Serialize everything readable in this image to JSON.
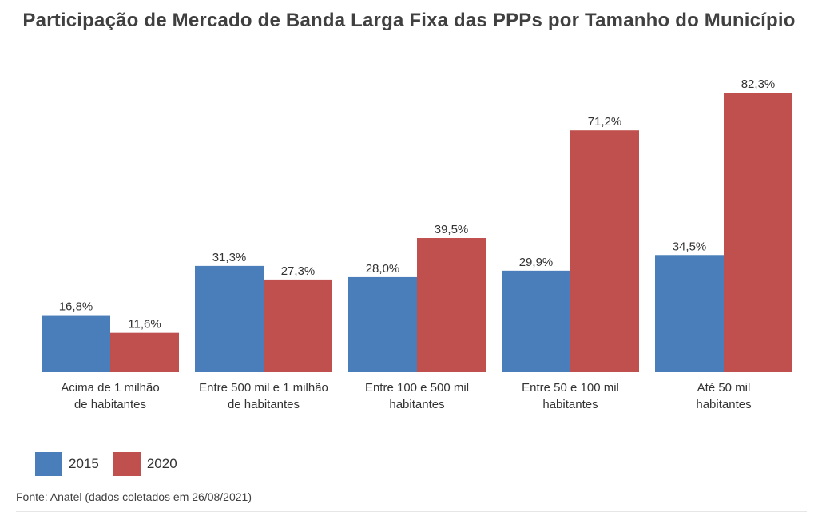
{
  "chart_data": {
    "type": "bar",
    "title": "Participação de Mercado de Banda Larga Fixa das PPPs por Tamanho do Município",
    "categories": [
      [
        "Acima de 1 milhão",
        "de habitantes"
      ],
      [
        "Entre 500 mil e 1 milhão",
        "de habitantes"
      ],
      [
        "Entre 100 e 500 mil",
        "habitantes"
      ],
      [
        "Entre 50 e 100 mil",
        "habitantes"
      ],
      [
        "Até 50 mil",
        "habitantes"
      ]
    ],
    "series": [
      {
        "name": "2015",
        "color": "#4a7ebb",
        "values": [
          16.8,
          31.3,
          28.0,
          29.9,
          34.5
        ],
        "labels": [
          "16,8%",
          "31,3%",
          "28,0%",
          "29,9%",
          "34,5%"
        ]
      },
      {
        "name": "2020",
        "color": "#c0504d",
        "values": [
          11.6,
          27.3,
          39.5,
          71.2,
          82.3
        ],
        "labels": [
          "11,6%",
          "27,3%",
          "39,5%",
          "71,2%",
          "82,3%"
        ]
      }
    ],
    "ylim": [
      0,
      82.3
    ],
    "grid": false,
    "legend_position": "bottom-left"
  },
  "source": "Fonte: Anatel (dados coletados em 26/08/2021)"
}
